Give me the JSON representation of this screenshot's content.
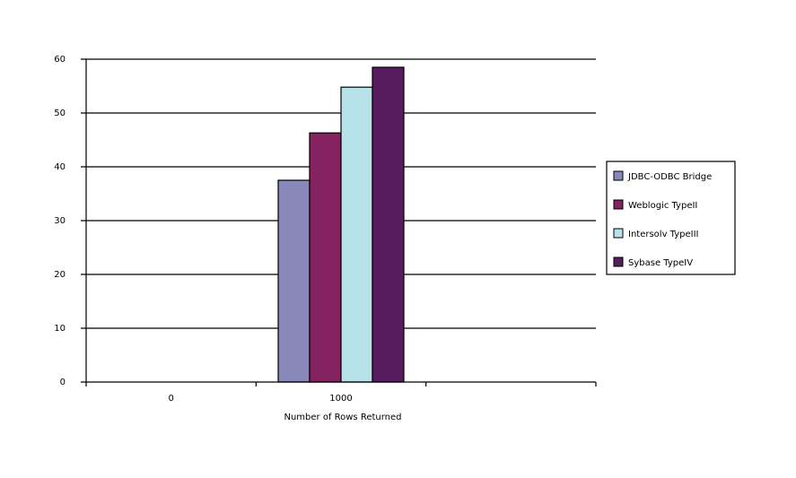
{
  "chart_data": {
    "type": "bar",
    "title": "",
    "xlabel": "Number of Rows Returned",
    "ylabel": "",
    "categories": [
      "0",
      "1000",
      ""
    ],
    "ylim": [
      0,
      60
    ],
    "yticks": [
      0,
      10,
      20,
      30,
      40,
      50,
      60
    ],
    "grid": true,
    "legend_position": "right",
    "series": [
      {
        "name": "JDBC-ODBC Bridge",
        "color": "#8888bb",
        "values": [
          null,
          37.5,
          null
        ]
      },
      {
        "name": "Weblogic TypeII",
        "color": "#852260",
        "values": [
          null,
          46.3,
          null
        ]
      },
      {
        "name": "Intersolv TypeIII",
        "color": "#b8e2ea",
        "values": [
          null,
          54.8,
          null
        ]
      },
      {
        "name": "Sybase TypeIV",
        "color": "#561c5e",
        "values": [
          null,
          58.5,
          null
        ]
      }
    ]
  }
}
